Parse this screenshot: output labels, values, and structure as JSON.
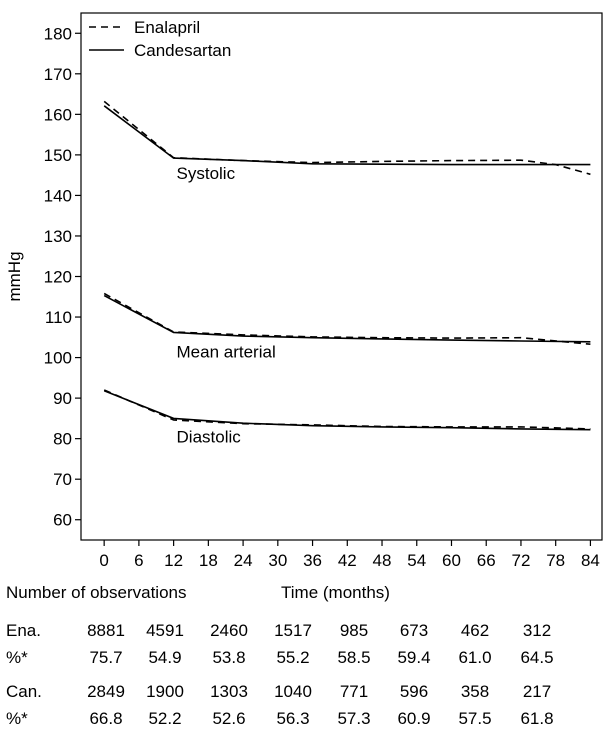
{
  "chart_data": {
    "type": "line",
    "ylabel": "mmHg",
    "xlabel": "Time (months)",
    "ylim": [
      55,
      185
    ],
    "xlim": [
      -4,
      86
    ],
    "y_ticks": [
      60,
      70,
      80,
      90,
      100,
      110,
      120,
      130,
      140,
      150,
      160,
      170,
      180
    ],
    "x_ticks": [
      0,
      6,
      12,
      18,
      24,
      30,
      36,
      42,
      48,
      54,
      60,
      66,
      72,
      78,
      84
    ],
    "grid": false,
    "legend_position": "top-left",
    "legend": [
      {
        "name": "Enalapril",
        "style": "dashed"
      },
      {
        "name": "Candesartan",
        "style": "solid"
      }
    ],
    "groups": [
      {
        "label": "Systolic",
        "label_at": {
          "x": 12.5,
          "y": 144
        },
        "series": [
          {
            "name": "Enalapril",
            "style": "dashed",
            "x": [
              0,
              12,
              24,
              36,
              48,
              60,
              72,
              78,
              84
            ],
            "y": [
              163.2,
              149.3,
              148.6,
              148.1,
              148.4,
              148.6,
              148.7,
              147.6,
              145.2
            ]
          },
          {
            "name": "Candesartan",
            "style": "solid",
            "x": [
              0,
              12,
              24,
              36,
              48,
              60,
              72,
              84
            ],
            "y": [
              162.1,
              149.2,
              148.6,
              147.8,
              147.7,
              147.6,
              147.6,
              147.6
            ]
          }
        ]
      },
      {
        "label": "Mean arterial",
        "label_at": {
          "x": 12.5,
          "y": 100
        },
        "series": [
          {
            "name": "Enalapril",
            "style": "dashed",
            "x": [
              0,
              12,
              24,
              36,
              48,
              60,
              72,
              84
            ],
            "y": [
              115.8,
              106.3,
              105.6,
              105.1,
              104.9,
              104.8,
              104.9,
              103.3
            ]
          },
          {
            "name": "Candesartan",
            "style": "solid",
            "x": [
              0,
              12,
              24,
              36,
              48,
              60,
              72,
              84
            ],
            "y": [
              115.3,
              106.2,
              105.3,
              104.9,
              104.6,
              104.3,
              104.1,
              103.9
            ]
          }
        ]
      },
      {
        "label": "Diastolic",
        "label_at": {
          "x": 12.5,
          "y": 79
        },
        "series": [
          {
            "name": "Enalapril",
            "style": "dashed",
            "x": [
              0,
              12,
              24,
              36,
              48,
              60,
              72,
              84
            ],
            "y": [
              92.0,
              84.6,
              83.7,
              83.4,
              83.0,
              82.9,
              82.9,
              82.4
            ]
          },
          {
            "name": "Candesartan",
            "style": "solid",
            "x": [
              0,
              12,
              24,
              36,
              48,
              60,
              72,
              84
            ],
            "y": [
              91.8,
              85.0,
              83.8,
              83.2,
              82.9,
              82.7,
              82.4,
              82.2
            ]
          }
        ]
      }
    ]
  },
  "observations": {
    "title": "Number of observations",
    "rows": [
      {
        "label": "Ena.",
        "values": [
          "8881",
          "4591",
          "2460",
          "1517",
          "985",
          "673",
          "462",
          "312"
        ]
      },
      {
        "label": "%*",
        "values": [
          "75.7",
          "54.9",
          "53.8",
          "55.2",
          "58.5",
          "59.4",
          "61.0",
          "64.5"
        ]
      },
      {
        "label": "Can.",
        "values": [
          "2849",
          "1900",
          "1303",
          "1040",
          "771",
          "596",
          "358",
          "217"
        ]
      },
      {
        "label": "%*",
        "values": [
          "66.8",
          "52.2",
          "52.6",
          "56.3",
          "57.3",
          "60.9",
          "57.5",
          "61.8"
        ]
      }
    ]
  }
}
